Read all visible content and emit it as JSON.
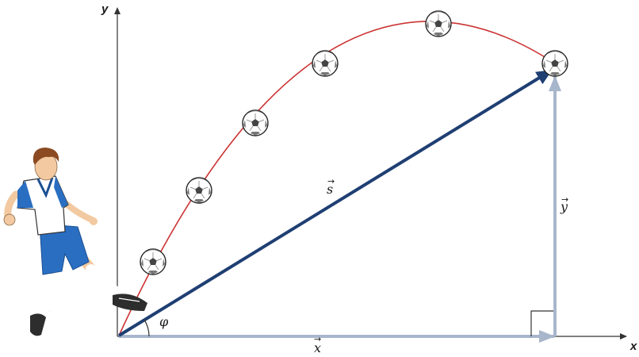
{
  "axes": {
    "x_label": "x",
    "y_label": "y"
  },
  "vectors": {
    "displacement_label": "s",
    "horizontal_label": "x",
    "vertical_label": "y",
    "angle_label": "φ"
  },
  "colors": {
    "trajectory": "#cc3333",
    "displacement": "#1f3f73",
    "components": "#a8b6cc",
    "axis": "#333333",
    "player_jersey": "#ffffff",
    "player_shorts": "#2a6ec2",
    "player_skin": "#f2c9a0",
    "player_hair": "#8b4a22"
  },
  "icons": [
    "soccer-player-icon",
    "soccer-ball-icon",
    "right-angle-marker-icon"
  ]
}
